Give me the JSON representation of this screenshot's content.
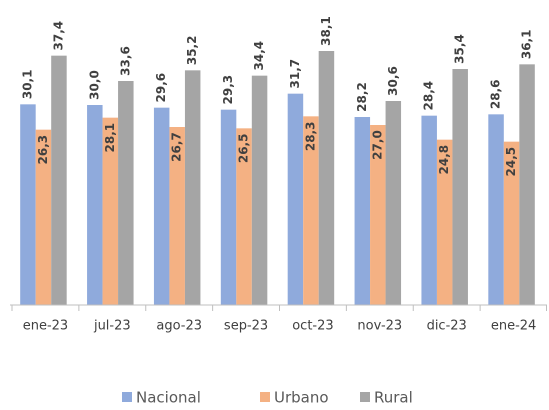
{
  "chart_data": {
    "type": "bar",
    "categories": [
      "ene-23",
      "jul-23",
      "ago-23",
      "sep-23",
      "oct-23",
      "nov-23",
      "dic-23",
      "ene-24"
    ],
    "series": [
      {
        "name": "Nacional",
        "color": "#8faadc",
        "values": [
          30.1,
          30.0,
          29.6,
          29.3,
          31.7,
          28.2,
          28.4,
          28.6
        ],
        "value_labels": [
          "30,1",
          "30,0",
          "29,6",
          "29,3",
          "31,7",
          "28,2",
          "28,4",
          "28,6"
        ]
      },
      {
        "name": "Urbano",
        "color": "#f4b183",
        "values": [
          26.3,
          28.1,
          26.7,
          26.5,
          28.3,
          27.0,
          24.8,
          24.5
        ],
        "value_labels": [
          "26,3",
          "28,1",
          "26,7",
          "26,5",
          "28,3",
          "27,0",
          "24,8",
          "24,5"
        ]
      },
      {
        "name": "Rural",
        "color": "#a5a5a5",
        "values": [
          37.4,
          33.6,
          35.2,
          34.4,
          38.1,
          30.6,
          35.4,
          36.1
        ],
        "value_labels": [
          "37,4",
          "33,6",
          "35,2",
          "34,4",
          "38,1",
          "30,6",
          "35,4",
          "36,1"
        ]
      }
    ],
    "ylim": [
      0,
      45
    ]
  }
}
